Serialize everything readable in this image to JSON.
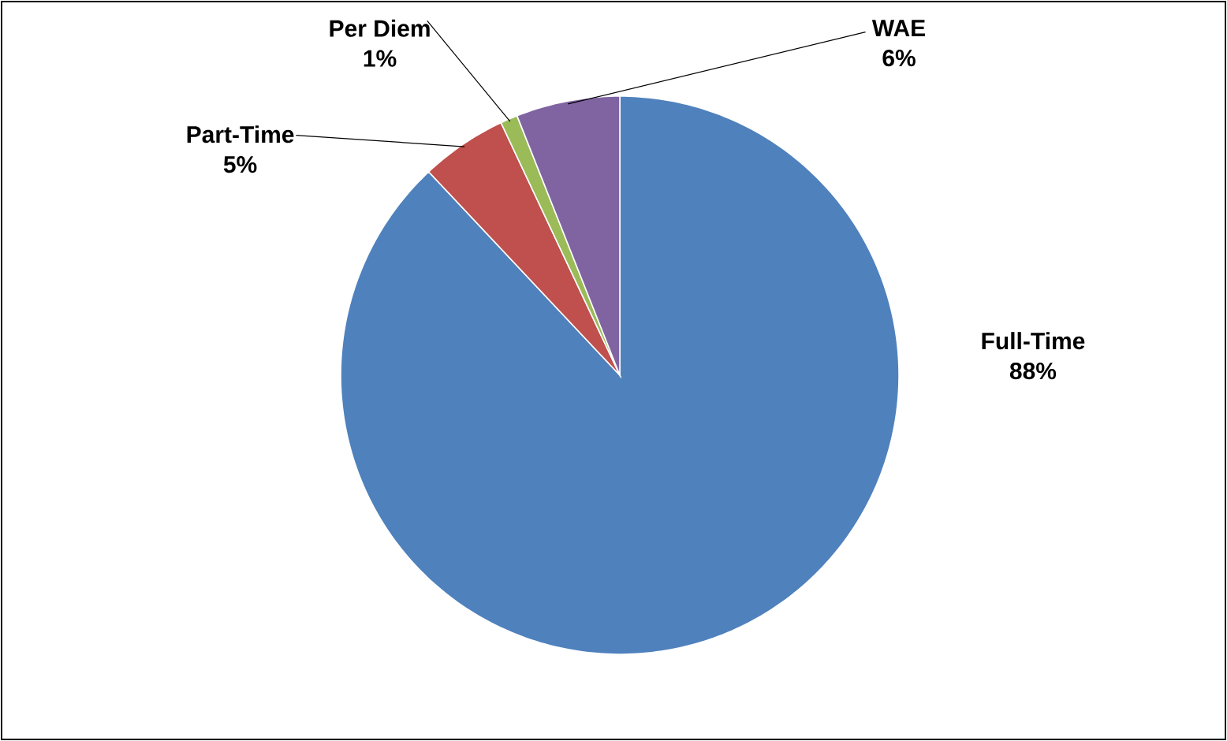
{
  "chart_data": {
    "type": "pie",
    "categories": [
      "Full-Time",
      "Part-Time",
      "Per Diem",
      "WAE"
    ],
    "values": [
      88,
      5,
      1,
      6
    ],
    "colors": [
      "#4f81bd",
      "#c0504d",
      "#9bbb59",
      "#8064a2"
    ],
    "value_labels": [
      "88%",
      "5%",
      "1%",
      "6%"
    ]
  }
}
